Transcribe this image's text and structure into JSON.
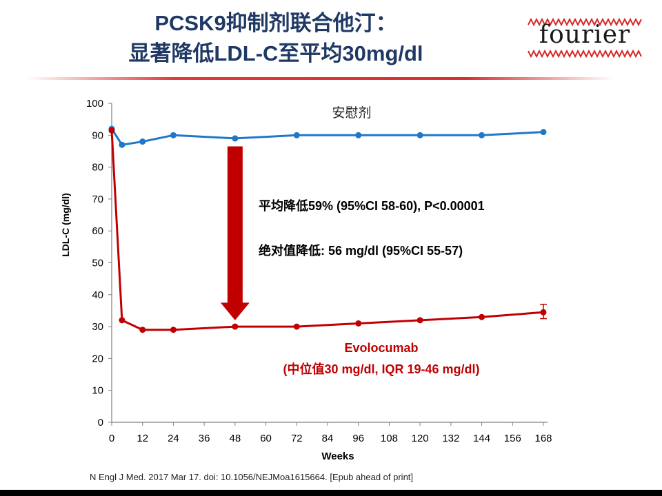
{
  "title": {
    "line1": "PCSK9抑制剂联合他汀：",
    "line2": "显著降低LDL-C至平均30mg/dl"
  },
  "logo": {
    "text": "fourier",
    "accent_color": "#d62828"
  },
  "source": "N Engl J Med. 2017 Mar 17. doi: 10.1056/NEJMoa1615664. [Epub ahead of print]",
  "annotations": {
    "reduction_pct": "平均降低59% (95%CI 58-60), P<0.00001",
    "reduction_abs": "绝对值降低: 56 mg/dl (95%CI 55-57)"
  },
  "colors": {
    "placebo": "#1e78c8",
    "evolocumab": "#c00000",
    "arrow": "#c00000",
    "title": "#1f3864"
  },
  "chart_data": {
    "type": "line",
    "xlabel": "Weeks",
    "ylabel": "LDL-C (mg/dl)",
    "xlim": [
      0,
      168
    ],
    "ylim": [
      0,
      100
    ],
    "xticks": [
      0,
      12,
      24,
      36,
      48,
      60,
      72,
      84,
      96,
      108,
      120,
      132,
      144,
      156,
      168
    ],
    "yticks": [
      0,
      10,
      20,
      30,
      40,
      50,
      60,
      70,
      80,
      90,
      100
    ],
    "grid": false,
    "series": [
      {
        "name": "安慰剂",
        "x": [
          0,
          4,
          12,
          24,
          48,
          72,
          96,
          120,
          144,
          168
        ],
        "y": [
          92,
          87,
          88,
          90,
          89,
          90,
          90,
          90,
          90,
          91
        ]
      },
      {
        "name": "Evolocumab",
        "label_sub": "(中位值30 mg/dl, IQR 19-46 mg/dl)",
        "x": [
          0,
          4,
          12,
          24,
          48,
          72,
          96,
          120,
          144,
          168
        ],
        "y": [
          91.5,
          32,
          29,
          29,
          30,
          30,
          31,
          32,
          33,
          34.5
        ],
        "error_at_last": [
          32.5,
          37
        ]
      }
    ]
  }
}
